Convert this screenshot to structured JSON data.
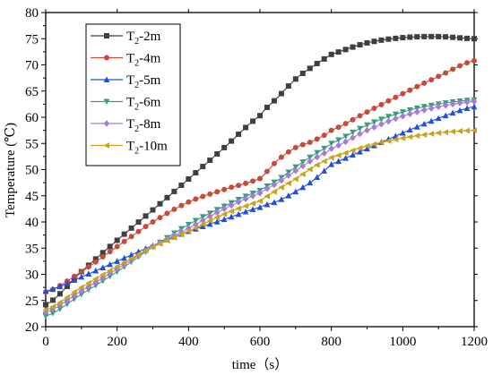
{
  "chart_data": {
    "type": "line",
    "xlabel": "time（s）",
    "ylabel": "Temperature (℃)",
    "xlim": [
      0,
      1200
    ],
    "ylim": [
      20,
      80
    ],
    "xticks": [
      0,
      200,
      400,
      600,
      800,
      1000,
      1200
    ],
    "yticks": [
      20,
      25,
      30,
      35,
      40,
      45,
      50,
      55,
      60,
      65,
      70,
      75,
      80
    ],
    "grid": false,
    "legend_position": "top-left",
    "x": [
      0,
      100,
      200,
      300,
      400,
      500,
      600,
      650,
      700,
      750,
      800,
      900,
      1000,
      1100,
      1200
    ],
    "series": [
      {
        "name": "T2-2m",
        "label_main": "T",
        "label_sub": "2",
        "label_rest": "-2m",
        "color": "#3f3f3f",
        "marker": "square",
        "values": [
          24.2,
          30.5,
          36.5,
          42.3,
          48.2,
          54.2,
          60.3,
          63.8,
          67.3,
          69.8,
          72.0,
          74.2,
          75.2,
          75.4,
          75.0
        ]
      },
      {
        "name": "T2-4m",
        "label_main": "T",
        "label_sub": "2",
        "label_rest": "-4m",
        "color": "#c84a3a",
        "marker": "circle",
        "values": [
          26.6,
          30.5,
          35.3,
          40.0,
          43.8,
          46.2,
          48.3,
          51.8,
          54.2,
          55.5,
          57.5,
          61.0,
          64.5,
          67.8,
          70.8
        ]
      },
      {
        "name": "T2-5m",
        "label_main": "T",
        "label_sub": "2",
        "label_rest": "-5m",
        "color": "#1f4fe0",
        "marker": "triangle-up",
        "values": [
          26.8,
          29.5,
          32.5,
          35.5,
          38.2,
          40.5,
          42.8,
          44.0,
          45.8,
          48.0,
          51.0,
          54.0,
          57.0,
          59.8,
          62.0
        ]
      },
      {
        "name": "T2-6m",
        "label_main": "T",
        "label_sub": "2",
        "label_rest": "-6m",
        "color": "#3a9c7e",
        "marker": "triangle-down",
        "values": [
          22.0,
          26.2,
          30.5,
          35.2,
          39.5,
          43.0,
          46.0,
          48.0,
          50.5,
          52.8,
          55.0,
          58.5,
          61.0,
          62.5,
          63.3
        ]
      },
      {
        "name": "T2-8m",
        "label_main": "T",
        "label_sub": "2",
        "label_rest": "-8m",
        "color": "#a77ad6",
        "marker": "diamond",
        "values": [
          22.8,
          26.8,
          31.0,
          35.3,
          38.8,
          42.5,
          45.5,
          47.5,
          49.8,
          52.0,
          54.0,
          57.5,
          60.2,
          62.0,
          63.0
        ]
      },
      {
        "name": "T2-10m",
        "label_main": "T",
        "label_sub": "2",
        "label_rest": "-10m",
        "color": "#c8a418",
        "marker": "triangle-left",
        "values": [
          23.2,
          27.5,
          31.5,
          35.2,
          38.2,
          41.5,
          44.0,
          46.2,
          48.2,
          50.5,
          52.3,
          54.5,
          56.0,
          57.0,
          57.5
        ]
      }
    ]
  }
}
